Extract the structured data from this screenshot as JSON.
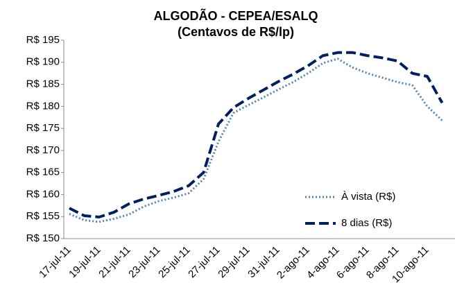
{
  "chart_data": {
    "type": "line",
    "title": "ALGODÃO - CEPEA/ESALQ",
    "subtitle": "(Centavos de R$/lp)",
    "categories": [
      "17-jul-11",
      null,
      "19-jul-11",
      null,
      "21-jul-11",
      null,
      "23-jul-11",
      null,
      "25-jul-11",
      null,
      "27-jul-11",
      null,
      "29-jul-11",
      null,
      "31-jul-11",
      null,
      "2-ago-11",
      null,
      "4-ago-11",
      null,
      "6-ago-11",
      null,
      "8-ago-11",
      null,
      "10-ago-11",
      null
    ],
    "series": [
      {
        "name": "À vista (R$)",
        "color": "#4f81bd",
        "style": "dotted",
        "values": [
          155.6,
          154.2,
          153.8,
          154.5,
          155.5,
          157.3,
          158.5,
          159.3,
          160.3,
          163.5,
          172,
          178.5,
          180.3,
          182,
          183.8,
          185.5,
          187.5,
          189.8,
          190.8,
          188.8,
          187.5,
          186.5,
          185.5,
          184.8,
          180,
          176.8
        ]
      },
      {
        "name": "8 dias (R$)",
        "color": "#002060",
        "style": "dashed",
        "values": [
          156.9,
          155.2,
          154.9,
          156,
          157.9,
          159,
          159.8,
          160.7,
          162,
          165,
          176,
          179.7,
          181.8,
          183.7,
          185.6,
          187.3,
          189.2,
          191.5,
          192.2,
          192.2,
          191.5,
          191,
          190.3,
          187.5,
          186.8,
          180.8
        ]
      }
    ],
    "ylim": [
      150,
      195
    ],
    "yticks": [
      {
        "value": 150,
        "label": "R$ 150"
      },
      {
        "value": 155,
        "label": "R$ 155"
      },
      {
        "value": 160,
        "label": "R$ 160"
      },
      {
        "value": 165,
        "label": "R$ 165"
      },
      {
        "value": 170,
        "label": "R$ 170"
      },
      {
        "value": 175,
        "label": "R$ 175"
      },
      {
        "value": 180,
        "label": "R$ 180"
      },
      {
        "value": 185,
        "label": "R$ 185"
      },
      {
        "value": 190,
        "label": "R$ 190"
      },
      {
        "value": 195,
        "label": "R$ 195"
      }
    ],
    "grid": false,
    "legend": "lower right"
  }
}
